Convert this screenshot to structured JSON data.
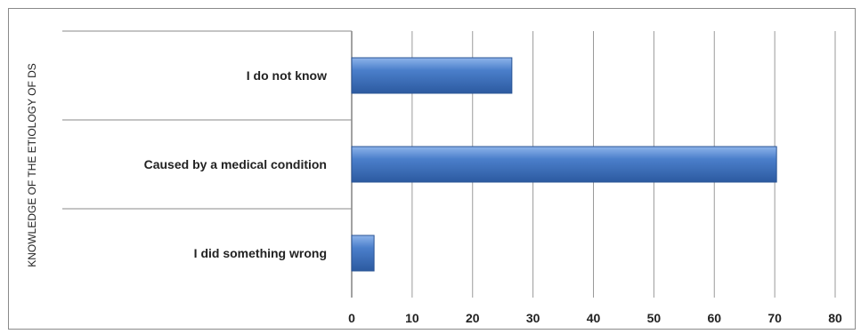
{
  "chart_data": {
    "type": "bar",
    "orientation": "horizontal",
    "title": "",
    "xlabel": "",
    "ylabel": "KNOWLEDGE OF THE ETIOLOGY OF DS",
    "categories": [
      "I do not know",
      "Caused by a medical condition",
      "I did something wrong"
    ],
    "values": [
      26.5,
      70.3,
      3.7
    ],
    "xlim": [
      0,
      80
    ],
    "xticks": [
      0,
      10,
      20,
      30,
      40,
      50,
      60,
      70,
      80
    ],
    "grid": true,
    "legend": "none",
    "bar_color": "#3f73c0"
  }
}
